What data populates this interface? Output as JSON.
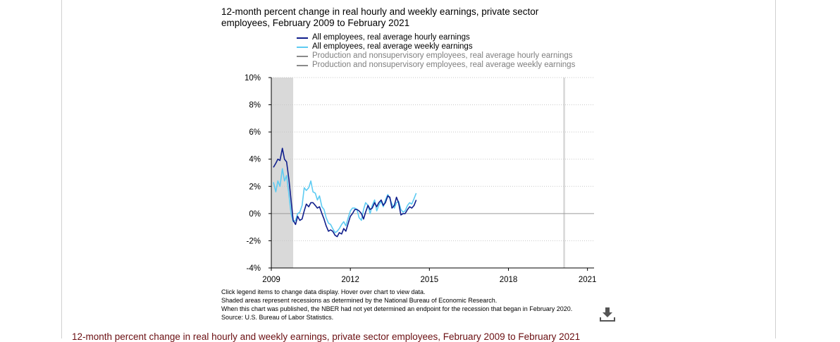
{
  "title": "12-month percent change in real hourly and weekly earnings, private sector employees, February 2009 to February 2021",
  "legend": [
    {
      "label": "All employees, real average hourly earnings",
      "color": "#101f8c",
      "active": true
    },
    {
      "label": "All employees, real average weekly earnings",
      "color": "#5ecbf2",
      "active": true
    },
    {
      "label": "Production and nonsupervisory employees, real average hourly earnings",
      "color": "#8a8a8a",
      "active": false
    },
    {
      "label": "Production and nonsupervisory employees, real average weekly earnings",
      "color": "#8a8a8a",
      "active": false
    }
  ],
  "notes": [
    "Click legend items to change data display. Hover over chart to view data.",
    "Shaded areas represent recessions as determined by the National Bureau of Economic Research.",
    "When this chart was published, the NBER had not yet determined an endpoint for the recession that began in February 2020.",
    "Source: U.S. Bureau of Labor Statistics."
  ],
  "bottom_link": "12-month percent change in real hourly and weekly earnings, private sector employees, February 2009 to February 2021",
  "chart_data": {
    "type": "line",
    "xlim": [
      2009,
      2021.25
    ],
    "ylim": [
      -4,
      10
    ],
    "x_ticks": [
      2009,
      2012,
      2015,
      2018,
      2021
    ],
    "x_tick_labels": [
      "2009",
      "2012",
      "2015",
      "2018",
      "2021"
    ],
    "y_ticks": [
      -4,
      -2,
      0,
      2,
      4,
      6,
      8,
      10
    ],
    "y_tick_labels": [
      "-4%",
      "-2%",
      "0%",
      "2%",
      "4%",
      "6%",
      "8%",
      "10%"
    ],
    "recessions": [
      [
        2009.0,
        2009.83
      ],
      [
        2020.08,
        2020.15
      ]
    ],
    "grid": true,
    "series": [
      {
        "name": "All employees, real average hourly earnings",
        "color": "#101f8c",
        "points": [
          [
            2009.08,
            3.4
          ],
          [
            2009.17,
            3.7
          ],
          [
            2009.25,
            4.0
          ],
          [
            2009.33,
            3.9
          ],
          [
            2009.42,
            4.8
          ],
          [
            2009.5,
            4.0
          ],
          [
            2009.58,
            3.8
          ],
          [
            2009.67,
            2.5
          ],
          [
            2009.75,
            1.0
          ],
          [
            2009.83,
            -0.5
          ],
          [
            2009.92,
            -0.8
          ],
          [
            2010.0,
            -0.2
          ],
          [
            2010.08,
            -0.5
          ],
          [
            2010.17,
            -0.4
          ],
          [
            2010.25,
            0.2
          ],
          [
            2010.33,
            0.7
          ],
          [
            2010.42,
            0.5
          ],
          [
            2010.5,
            0.8
          ],
          [
            2010.58,
            0.8
          ],
          [
            2010.67,
            0.6
          ],
          [
            2010.75,
            0.4
          ],
          [
            2010.83,
            0.5
          ],
          [
            2010.92,
            0.0
          ],
          [
            2011.0,
            -0.4
          ],
          [
            2011.08,
            -0.9
          ],
          [
            2011.17,
            -1.3
          ],
          [
            2011.25,
            -1.2
          ],
          [
            2011.33,
            -1.3
          ],
          [
            2011.42,
            -1.6
          ],
          [
            2011.5,
            -1.7
          ],
          [
            2011.58,
            -1.4
          ],
          [
            2011.67,
            -1.5
          ],
          [
            2011.75,
            -1.1
          ],
          [
            2011.83,
            -1.3
          ],
          [
            2011.92,
            -0.7
          ],
          [
            2012.0,
            -0.2
          ],
          [
            2012.08,
            0.0
          ],
          [
            2012.17,
            0.3
          ],
          [
            2012.25,
            0.3
          ],
          [
            2012.33,
            0.2
          ],
          [
            2012.42,
            0.0
          ],
          [
            2012.5,
            -0.4
          ],
          [
            2012.58,
            0.1
          ],
          [
            2012.67,
            0.6
          ],
          [
            2012.75,
            0.3
          ],
          [
            2012.83,
            0.4
          ],
          [
            2012.92,
            0.8
          ],
          [
            2013.0,
            0.5
          ],
          [
            2013.08,
            0.8
          ],
          [
            2013.17,
            1.0
          ],
          [
            2013.25,
            0.6
          ],
          [
            2013.33,
            0.8
          ],
          [
            2013.42,
            1.3
          ],
          [
            2013.5,
            1.2
          ],
          [
            2013.58,
            0.4
          ],
          [
            2013.67,
            0.6
          ],
          [
            2013.75,
            1.2
          ],
          [
            2013.83,
            0.8
          ],
          [
            2013.92,
            -0.1
          ],
          [
            2014.0,
            0.0
          ],
          [
            2014.08,
            0.0
          ],
          [
            2014.17,
            0.3
          ],
          [
            2014.25,
            0.5
          ],
          [
            2014.33,
            0.4
          ],
          [
            2014.42,
            0.6
          ],
          [
            2014.5,
            1.0
          ]
        ]
      },
      {
        "name": "All employees, real average weekly earnings",
        "color": "#5ecbf2",
        "points": [
          [
            2009.08,
            2.3
          ],
          [
            2009.17,
            1.6
          ],
          [
            2009.25,
            2.4
          ],
          [
            2009.33,
            2.0
          ],
          [
            2009.42,
            3.3
          ],
          [
            2009.5,
            2.4
          ],
          [
            2009.58,
            2.8
          ],
          [
            2009.67,
            1.4
          ],
          [
            2009.75,
            0.0
          ],
          [
            2009.83,
            -0.6
          ],
          [
            2009.92,
            -0.5
          ],
          [
            2010.0,
            0.0
          ],
          [
            2010.08,
            0.1
          ],
          [
            2010.17,
            0.6
          ],
          [
            2010.25,
            1.9
          ],
          [
            2010.33,
            1.7
          ],
          [
            2010.42,
            1.9
          ],
          [
            2010.5,
            2.4
          ],
          [
            2010.58,
            1.6
          ],
          [
            2010.67,
            1.5
          ],
          [
            2010.75,
            1.0
          ],
          [
            2010.83,
            1.3
          ],
          [
            2010.92,
            0.5
          ],
          [
            2011.0,
            0.3
          ],
          [
            2011.08,
            -0.3
          ],
          [
            2011.17,
            -0.7
          ],
          [
            2011.25,
            -0.8
          ],
          [
            2011.33,
            -1.1
          ],
          [
            2011.42,
            -1.4
          ],
          [
            2011.5,
            -1.3
          ],
          [
            2011.58,
            -1.1
          ],
          [
            2011.67,
            -0.8
          ],
          [
            2011.75,
            -0.6
          ],
          [
            2011.83,
            -0.9
          ],
          [
            2011.92,
            -0.3
          ],
          [
            2012.0,
            0.2
          ],
          [
            2012.08,
            0.4
          ],
          [
            2012.17,
            0.4
          ],
          [
            2012.25,
            0.3
          ],
          [
            2012.33,
            -0.3
          ],
          [
            2012.42,
            -0.5
          ],
          [
            2012.5,
            0.3
          ],
          [
            2012.58,
            0.8
          ],
          [
            2012.67,
            0.6
          ],
          [
            2012.75,
            0.0
          ],
          [
            2012.83,
            0.6
          ],
          [
            2012.92,
            1.0
          ],
          [
            2013.0,
            0.2
          ],
          [
            2013.08,
            0.6
          ],
          [
            2013.17,
            0.9
          ],
          [
            2013.25,
            0.5
          ],
          [
            2013.33,
            1.0
          ],
          [
            2013.42,
            1.4
          ],
          [
            2013.5,
            1.1
          ],
          [
            2013.58,
            0.7
          ],
          [
            2013.67,
            0.4
          ],
          [
            2013.75,
            0.8
          ],
          [
            2013.83,
            0.9
          ],
          [
            2013.92,
            0.3
          ],
          [
            2014.0,
            0.1
          ],
          [
            2014.08,
            0.2
          ],
          [
            2014.17,
            0.6
          ],
          [
            2014.25,
            0.8
          ],
          [
            2014.33,
            0.7
          ],
          [
            2014.42,
            1.1
          ],
          [
            2014.5,
            1.5
          ]
        ]
      }
    ]
  }
}
